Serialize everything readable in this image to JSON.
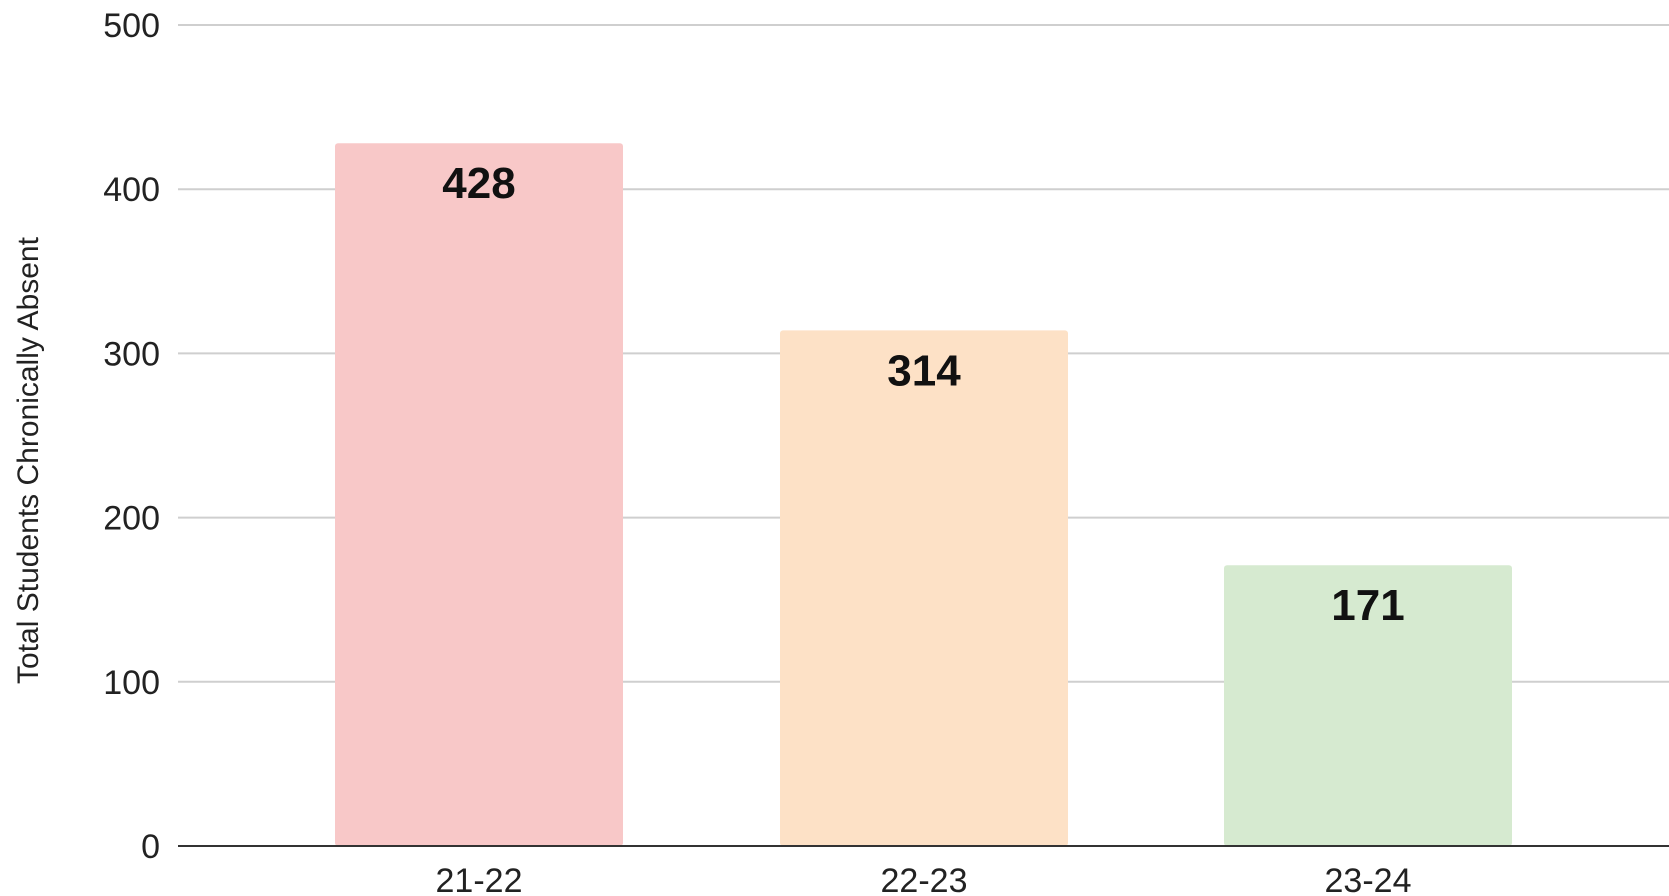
{
  "chart_data": {
    "type": "bar",
    "categories": [
      "21-22",
      "22-23",
      "23-24"
    ],
    "values": [
      428,
      314,
      171
    ],
    "value_labels": [
      "428",
      "314",
      "171"
    ],
    "colors": [
      "#f8c8c8",
      "#fde1c6",
      "#d6ead0"
    ],
    "title": "",
    "xlabel": "",
    "ylabel": "Total Students Chronically Absent",
    "ylim": [
      0,
      500
    ],
    "yticks": [
      0,
      100,
      200,
      300,
      400,
      500
    ],
    "ytick_labels": [
      "0",
      "100",
      "200",
      "300",
      "400",
      "500"
    ],
    "grid": true,
    "legend": "none"
  }
}
